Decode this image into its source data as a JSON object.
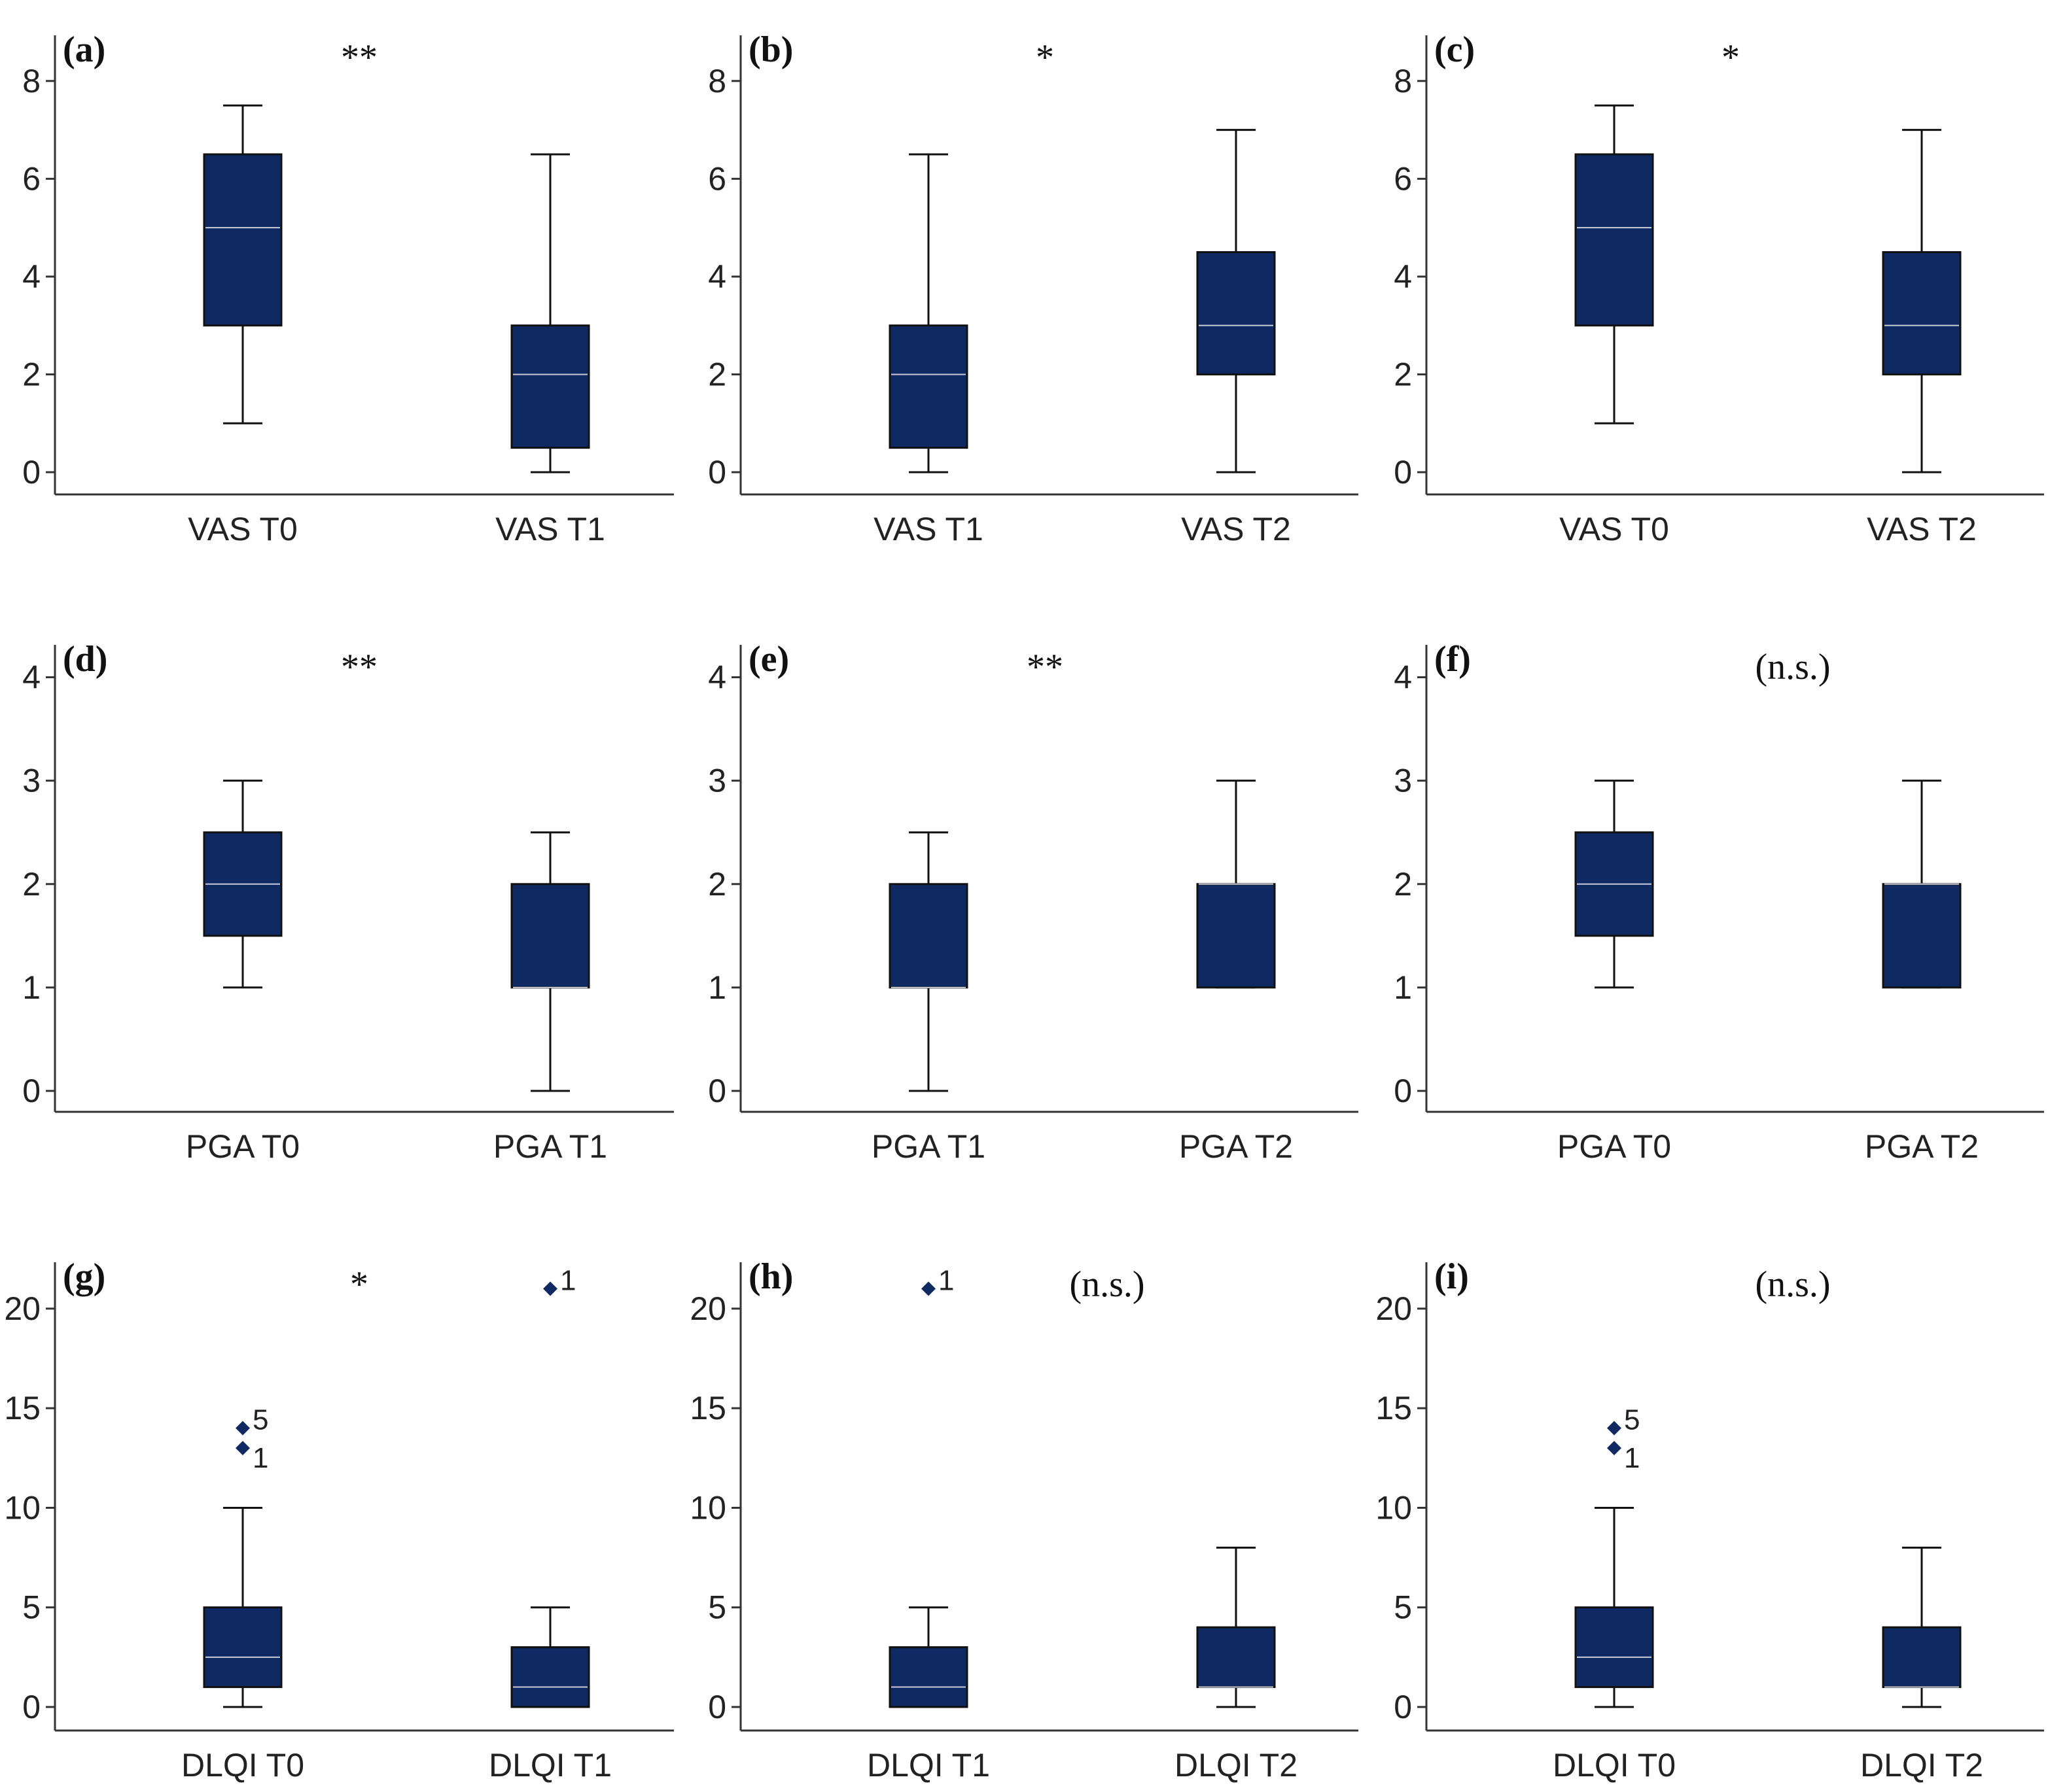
{
  "colors": {
    "box": "#0f2a63",
    "median": "#c9ccd6",
    "axis": "#333333",
    "whisker": "#111111"
  },
  "chart_data": [
    {
      "type": "box",
      "panel": "(a)",
      "significance": "**",
      "yticks": [
        "0",
        "2",
        "4",
        "6",
        "8"
      ],
      "ylim": [
        0,
        8.8
      ],
      "boxes": [
        {
          "label": "VAS T0",
          "min": 1,
          "q1": 3,
          "median": 5,
          "q3": 6.5,
          "max": 7.5,
          "outliers": []
        },
        {
          "label": "VAS T1",
          "min": 0,
          "q1": 0.5,
          "median": 2,
          "q3": 3,
          "max": 6.5,
          "outliers": []
        }
      ]
    },
    {
      "type": "box",
      "panel": "(b)",
      "significance": "*",
      "yticks": [
        "0",
        "2",
        "4",
        "6",
        "8"
      ],
      "ylim": [
        0,
        8.8
      ],
      "boxes": [
        {
          "label": "VAS T1",
          "min": 0,
          "q1": 0.5,
          "median": 2,
          "q3": 3,
          "max": 6.5,
          "outliers": []
        },
        {
          "label": "VAS T2",
          "min": 0,
          "q1": 2,
          "median": 3,
          "q3": 4.5,
          "max": 7,
          "outliers": []
        }
      ]
    },
    {
      "type": "box",
      "panel": "(c)",
      "significance": "*",
      "yticks": [
        "0",
        "2",
        "4",
        "6",
        "8"
      ],
      "ylim": [
        0,
        8.8
      ],
      "boxes": [
        {
          "label": "VAS T0",
          "min": 1,
          "q1": 3,
          "median": 5,
          "q3": 6.5,
          "max": 7.5,
          "outliers": []
        },
        {
          "label": "VAS T2",
          "min": 0,
          "q1": 2,
          "median": 3,
          "q3": 4.5,
          "max": 7,
          "outliers": []
        }
      ]
    },
    {
      "type": "box",
      "panel": "(d)",
      "significance": "**",
      "yticks": [
        "0",
        "1",
        "2",
        "3",
        "4"
      ],
      "ylim": [
        0,
        4.25
      ],
      "boxes": [
        {
          "label": "PGA T0",
          "min": 1,
          "q1": 1.5,
          "median": 2,
          "q3": 2.5,
          "max": 3,
          "outliers": []
        },
        {
          "label": "PGA T1",
          "min": 0,
          "q1": 1,
          "median": 1,
          "q3": 2,
          "max": 2.5,
          "outliers": []
        }
      ]
    },
    {
      "type": "box",
      "panel": "(e)",
      "significance": "**",
      "yticks": [
        "0",
        "1",
        "2",
        "3",
        "4"
      ],
      "ylim": [
        0,
        4.25
      ],
      "boxes": [
        {
          "label": "PGA T1",
          "min": 0,
          "q1": 1,
          "median": 1,
          "q3": 2,
          "max": 2.5,
          "outliers": []
        },
        {
          "label": "PGA T2",
          "min": 1,
          "q1": 1,
          "median": 2,
          "q3": 2,
          "max": 3,
          "outliers": []
        }
      ]
    },
    {
      "type": "box",
      "panel": "(f)",
      "significance": "(n.s.)",
      "yticks": [
        "0",
        "1",
        "2",
        "3",
        "4"
      ],
      "ylim": [
        0,
        4.25
      ],
      "boxes": [
        {
          "label": "PGA T0",
          "min": 1,
          "q1": 1.5,
          "median": 2,
          "q3": 2.5,
          "max": 3,
          "outliers": []
        },
        {
          "label": "PGA T2",
          "min": 1,
          "q1": 1,
          "median": 2,
          "q3": 2,
          "max": 3,
          "outliers": []
        }
      ]
    },
    {
      "type": "box",
      "panel": "(g)",
      "significance": "*",
      "yticks": [
        "0",
        "5",
        "10",
        "15",
        "20"
      ],
      "ylim": [
        0,
        22
      ],
      "boxes": [
        {
          "label": "DLQI T0",
          "min": 0,
          "q1": 1,
          "median": 2.5,
          "q3": 5,
          "max": 10,
          "outliers": [
            {
              "value": 14,
              "label": "5"
            },
            {
              "value": 13,
              "label": "1"
            }
          ]
        },
        {
          "label": "DLQI T1",
          "min": 0,
          "q1": 0,
          "median": 1,
          "q3": 3,
          "max": 5,
          "outliers": [
            {
              "value": 21,
              "label": "1"
            }
          ]
        }
      ]
    },
    {
      "type": "box",
      "panel": "(h)",
      "significance": "(n.s.)",
      "yticks": [
        "0",
        "5",
        "10",
        "15",
        "20"
      ],
      "ylim": [
        0,
        22
      ],
      "boxes": [
        {
          "label": "DLQI T1",
          "min": 0,
          "q1": 0,
          "median": 1,
          "q3": 3,
          "max": 5,
          "outliers": [
            {
              "value": 21,
              "label": "1"
            }
          ]
        },
        {
          "label": "DLQI T2",
          "min": 0,
          "q1": 1,
          "median": 1,
          "q3": 4,
          "max": 8,
          "outliers": []
        }
      ]
    },
    {
      "type": "box",
      "panel": "(i)",
      "significance": "(n.s.)",
      "yticks": [
        "0",
        "5",
        "10",
        "15",
        "20"
      ],
      "ylim": [
        0,
        22
      ],
      "boxes": [
        {
          "label": "DLQI T0",
          "min": 0,
          "q1": 1,
          "median": 2.5,
          "q3": 5,
          "max": 10,
          "outliers": [
            {
              "value": 14,
              "label": "5"
            },
            {
              "value": 13,
              "label": "1"
            }
          ]
        },
        {
          "label": "DLQI T2",
          "min": 0,
          "q1": 1,
          "median": 1,
          "q3": 4,
          "max": 8,
          "outliers": []
        }
      ]
    }
  ]
}
